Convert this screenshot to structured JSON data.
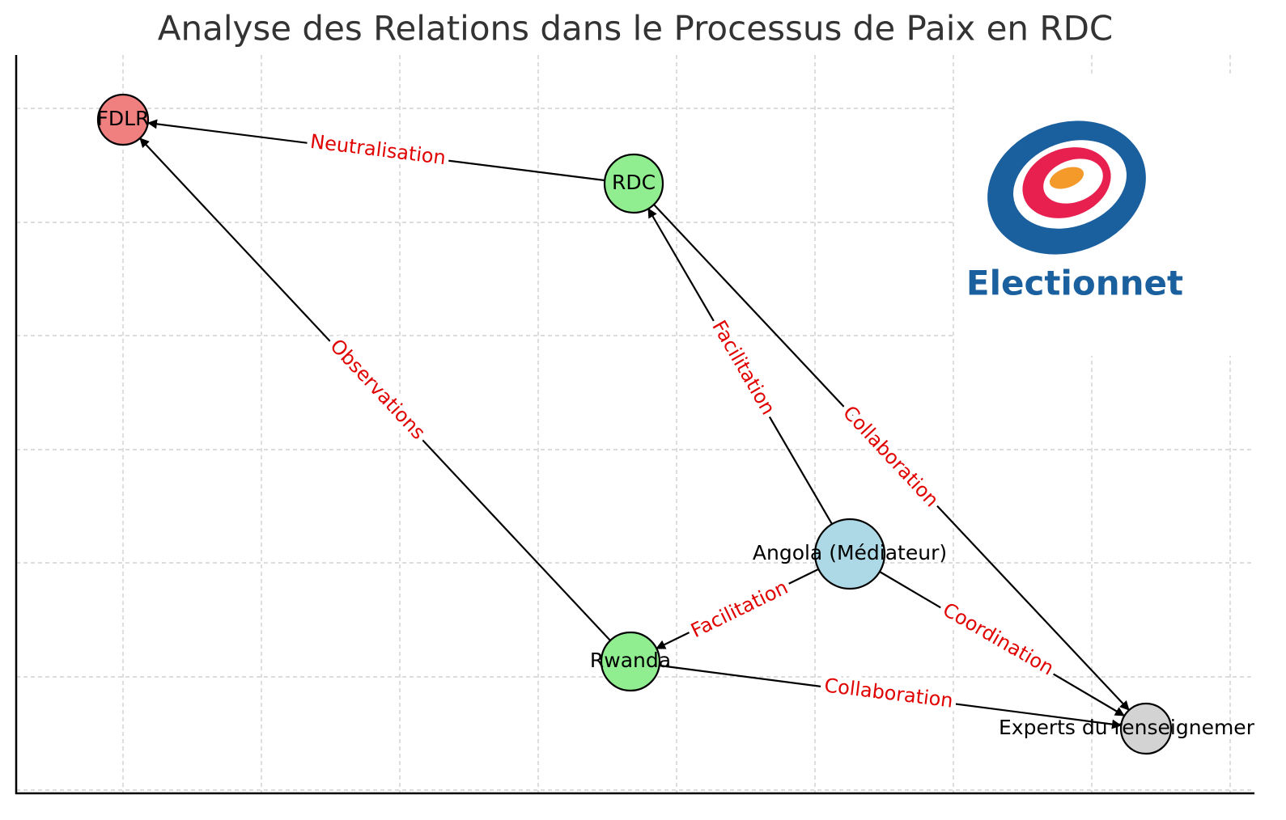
{
  "title": "Analyse des Relations dans le Processus de Paix en RDC",
  "nodes": [
    {
      "label": "FDLR"
    },
    {
      "label": "RDC"
    },
    {
      "label": "Angola (Médiateur)"
    },
    {
      "label": "Rwanda"
    },
    {
      "label": "Experts du renseignement"
    }
  ],
  "edges": [
    {
      "label": "Neutralisation"
    },
    {
      "label": "Observations"
    },
    {
      "label": "Facilitation"
    },
    {
      "label": "Collaboration"
    },
    {
      "label": "Facilitation"
    },
    {
      "label": "Coordination"
    },
    {
      "label": "Collaboration"
    }
  ],
  "logo": {
    "text": "Electionnet"
  }
}
